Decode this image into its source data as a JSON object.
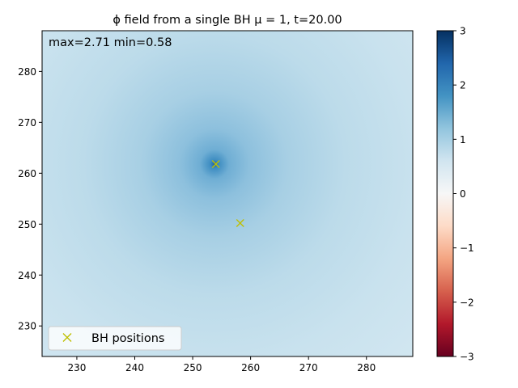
{
  "chart_data": {
    "type": "heatmap",
    "title": "ϕ field from a single BH μ = 1, t=20.00",
    "xlabel": "",
    "ylabel": "",
    "xlim": [
      224,
      288
    ],
    "ylim": [
      224,
      288
    ],
    "x_ticks": [
      230,
      240,
      250,
      260,
      270,
      280
    ],
    "y_ticks": [
      230,
      240,
      250,
      260,
      270,
      280
    ],
    "annotation": "max=2.71 min=0.58",
    "field_max": 2.71,
    "field_min": 0.58,
    "field_center": [
      254,
      261.8
    ],
    "colormap": "RdBu",
    "colorbar": {
      "min": -3,
      "max": 3,
      "ticks": [
        3,
        2,
        1,
        0,
        -1,
        -2,
        -3
      ]
    },
    "series": [
      {
        "name": "BH positions",
        "marker": "x",
        "color": "#bfbf00",
        "points": [
          {
            "x": 254,
            "y": 261.8
          },
          {
            "x": 258.2,
            "y": 250.2
          }
        ]
      }
    ],
    "legend": {
      "placement": "lower-left",
      "label": "BH positions"
    },
    "grid": false
  }
}
